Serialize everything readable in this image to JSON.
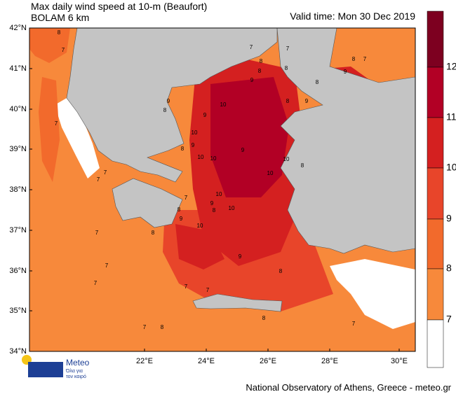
{
  "header": {
    "title": "Max daily wind speed at 10-m (Beaufort)",
    "model": "BOLAM 6 km",
    "valid_time": "Valid time: Mon 30 Dec 2019"
  },
  "lat_labels": [
    "42°N",
    "41°N",
    "40°N",
    "39°N",
    "38°N",
    "37°N",
    "36°N",
    "35°N",
    "34°N"
  ],
  "lon_labels": [
    "22°E",
    "24°E",
    "26°E",
    "28°E",
    "30°E"
  ],
  "colorbar": {
    "levels": [
      "12",
      "11",
      "10",
      "9",
      "8",
      "7"
    ]
  },
  "contour_labels": [
    "8",
    "7",
    "8",
    "7",
    "8",
    "7",
    "8",
    "8",
    "9",
    "7",
    "9",
    "8",
    "10",
    "9",
    "7",
    "8",
    "10",
    "9",
    "8",
    "9",
    "10",
    "10",
    "9",
    "8",
    "7",
    "7",
    "10",
    "8",
    "10",
    "9",
    "10",
    "10",
    "9",
    "8",
    "7",
    "10",
    "9",
    "8",
    "9",
    "8",
    "7",
    "8",
    "7",
    "7",
    "7",
    "7",
    "7",
    "8",
    "8",
    "7"
  ],
  "logo": {
    "name": "Meteo",
    "tagline": [
      "Όλα για",
      "τον καιρό"
    ]
  },
  "footer": "National Observatory of Athens, Greece - meteo.gr"
}
